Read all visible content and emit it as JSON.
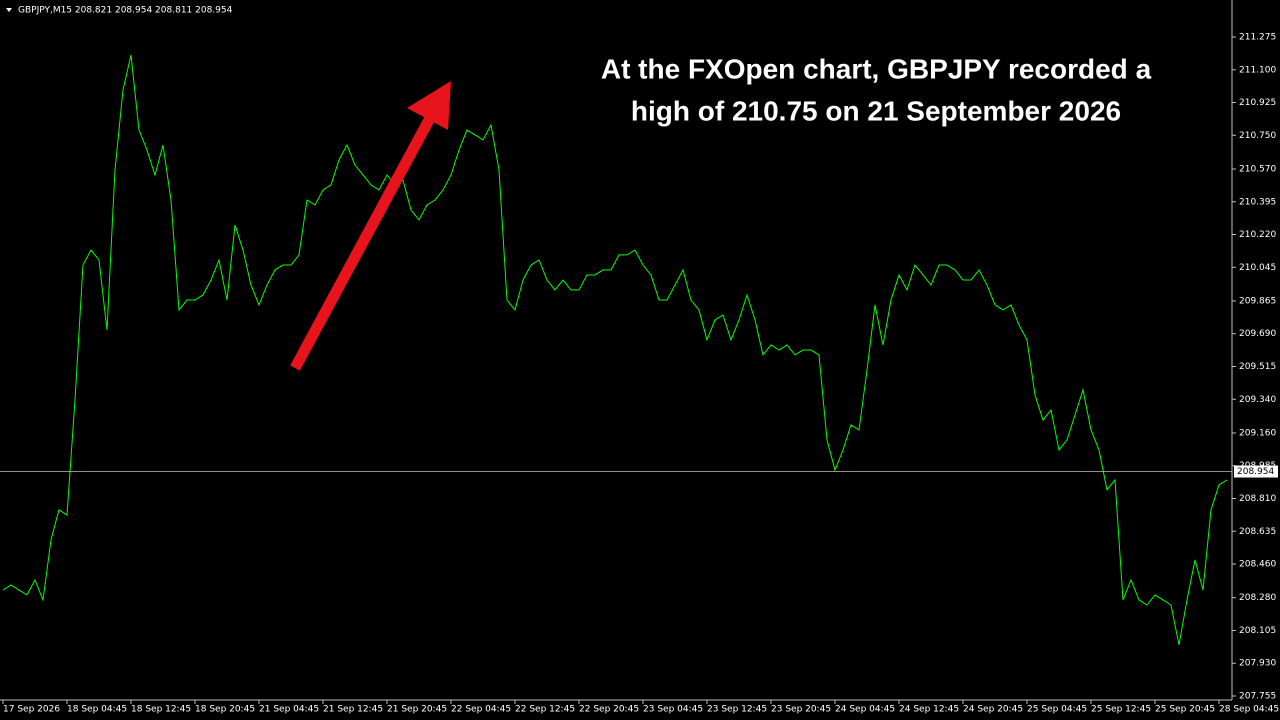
{
  "chart_data": {
    "type": "line",
    "title": "GBPJPY,M15  208.821 208.954 208.811 208.954",
    "annotation": [
      "At the FXOpen chart, GBPJPY recorded a",
      "high of 210.75 on 21 September 2026"
    ],
    "categories": [
      "17 Sep 2026",
      null,
      null,
      null,
      null,
      null,
      null,
      null,
      "18 Sep 04:45",
      null,
      null,
      null,
      null,
      null,
      null,
      null,
      "18 Sep 12:45",
      null,
      null,
      null,
      null,
      null,
      null,
      null,
      "18 Sep 20:45",
      null,
      null,
      null,
      null,
      null,
      null,
      null,
      "21 Sep 04:45",
      null,
      null,
      null,
      null,
      null,
      null,
      null,
      "21 Sep 12:45",
      null,
      null,
      null,
      null,
      null,
      null,
      null,
      "21 Sep 20:45",
      null,
      null,
      null,
      null,
      null,
      null,
      null,
      "22 Sep 04:45",
      null,
      null,
      null,
      null,
      null,
      null,
      null,
      "22 Sep 12:45",
      null,
      null,
      null,
      null,
      null,
      null,
      null,
      "22 Sep 20:45",
      null,
      null,
      null,
      null,
      null,
      null,
      null,
      "23 Sep 04:45",
      null,
      null,
      null,
      null,
      null,
      null,
      null,
      "23 Sep 12:45",
      null,
      null,
      null,
      null,
      null,
      null,
      null,
      "23 Sep 20:45",
      null,
      null,
      null,
      null,
      null,
      null,
      null,
      "24 Sep 04:45",
      null,
      null,
      null,
      null,
      null,
      null,
      null,
      "24 Sep 12:45",
      null,
      null,
      null,
      null,
      null,
      null,
      null,
      "24 Sep 20:45",
      null,
      null,
      null,
      null,
      null,
      null,
      null,
      "25 Sep 04:45",
      null,
      null,
      null,
      null,
      null,
      null,
      null,
      "25 Sep 12:45",
      null,
      null,
      null,
      null,
      null,
      null,
      null,
      "25 Sep 20:45",
      null,
      null,
      null,
      null,
      null,
      null,
      null,
      "28 Sep 04:45",
      null
    ],
    "values": [
      208.321,
      208.348,
      208.321,
      208.295,
      208.375,
      208.268,
      208.589,
      208.749,
      208.722,
      209.336,
      210.057,
      210.137,
      210.084,
      209.71,
      210.565,
      210.992,
      211.179,
      210.778,
      210.671,
      210.538,
      210.698,
      210.404,
      209.817,
      209.87,
      209.87,
      209.897,
      209.977,
      210.084,
      209.87,
      210.271,
      210.137,
      209.95,
      209.844,
      209.95,
      210.031,
      210.057,
      210.057,
      210.111,
      210.404,
      210.378,
      210.458,
      210.485,
      210.618,
      210.698,
      210.591,
      210.538,
      210.485,
      210.458,
      210.538,
      210.485,
      210.511,
      210.351,
      210.298,
      210.378,
      210.404,
      210.458,
      210.538,
      210.671,
      210.778,
      210.752,
      210.725,
      210.805,
      210.565,
      209.87,
      209.817,
      209.977,
      210.057,
      210.084,
      209.977,
      209.924,
      209.977,
      209.924,
      209.924,
      210.004,
      210.004,
      210.031,
      210.031,
      210.111,
      210.111,
      210.137,
      210.057,
      210.004,
      209.87,
      209.87,
      209.95,
      210.031,
      209.87,
      209.817,
      209.657,
      209.764,
      209.79,
      209.657,
      209.764,
      209.897,
      209.764,
      209.577,
      209.63,
      209.603,
      209.63,
      209.577,
      209.603,
      209.603,
      209.577,
      209.123,
      208.962,
      209.069,
      209.203,
      209.176,
      209.496,
      209.844,
      209.63,
      209.87,
      210.004,
      209.924,
      210.057,
      210.004,
      209.95,
      210.057,
      210.057,
      210.031,
      209.977,
      209.977,
      210.031,
      209.95,
      209.844,
      209.817,
      209.844,
      209.737,
      209.657,
      209.363,
      209.229,
      209.283,
      209.069,
      209.123,
      209.256,
      209.39,
      209.176,
      209.069,
      208.856,
      208.909,
      208.268,
      208.375,
      208.268,
      208.241,
      208.295,
      208.268,
      208.241,
      208.028,
      208.268,
      208.482,
      208.321,
      208.749,
      208.882,
      208.909
    ],
    "color": "#00ff00",
    "ylim": [
      207.755,
      211.275
    ],
    "yticks": [
      211.275,
      {
        "value": 211.1,
        "label": "211.100"
      },
      210.925,
      {
        "value": 210.75,
        "label": "210.750"
      },
      {
        "value": 210.57,
        "label": "210.570"
      },
      210.395,
      {
        "value": 210.22,
        "label": "210.220"
      },
      210.045,
      209.865,
      {
        "value": 209.69,
        "label": "209.690"
      },
      209.515,
      {
        "value": 209.34,
        "label": "209.340"
      },
      {
        "value": 209.16,
        "label": "209.160"
      },
      208.985,
      {
        "value": 208.81,
        "label": "208.810"
      },
      208.635,
      {
        "value": 208.46,
        "label": "208.460"
      },
      {
        "value": 208.28,
        "label": "208.280"
      },
      208.105,
      {
        "value": 207.93,
        "label": "207.930"
      },
      207.755
    ],
    "current_price": 208.954,
    "grid": false
  }
}
